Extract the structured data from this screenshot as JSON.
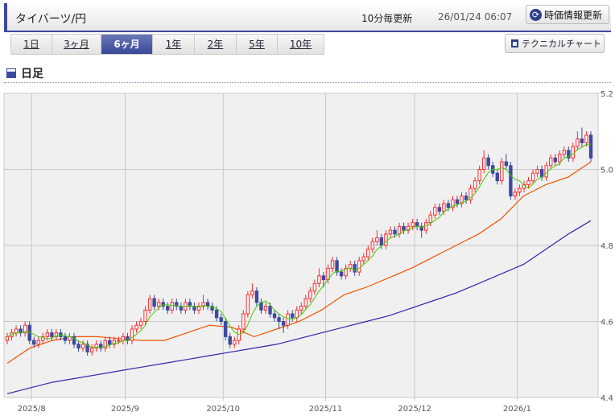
{
  "header": {
    "title": "タイバーツ/円",
    "update_interval": "10分毎更新",
    "timestamp": "26/01/24 06:07",
    "refresh_label": "時価情報更新",
    "refresh_icon": "refresh-icon"
  },
  "tabs": [
    {
      "label": "1日"
    },
    {
      "label": "3ヶ月"
    },
    {
      "label": "6ヶ月",
      "active": true
    },
    {
      "label": "1年"
    },
    {
      "label": "2年"
    },
    {
      "label": "5年"
    },
    {
      "label": "10年"
    }
  ],
  "technical_label": "テクニカルチャート",
  "section_title": "日足",
  "colors": {
    "up": "#ff2a2a",
    "down": "#3c4aa0",
    "ma_short": "#44cc00",
    "ma_mid": "#ee5500",
    "ma_long": "#3a22aa",
    "accent": "#3c4aa0"
  },
  "chart_data": {
    "type": "candlestick",
    "ylim": [
      4.4,
      5.2
    ],
    "yticks": [
      "4.4",
      "4.6",
      "4.8",
      "5.0",
      "5.2"
    ],
    "xticks": [
      "2025/8",
      "2025/9",
      "2025/10",
      "2025/11",
      "2025/12",
      "2026/1"
    ],
    "grid": true,
    "ohlc": [
      [
        4.55,
        4.57,
        4.54,
        4.56
      ],
      [
        4.56,
        4.58,
        4.55,
        4.57
      ],
      [
        4.57,
        4.59,
        4.56,
        4.58
      ],
      [
        4.58,
        4.59,
        4.56,
        4.57
      ],
      [
        4.57,
        4.6,
        4.56,
        4.59
      ],
      [
        4.59,
        4.6,
        4.54,
        4.55
      ],
      [
        4.55,
        4.56,
        4.53,
        4.54
      ],
      [
        4.54,
        4.56,
        4.53,
        4.55
      ],
      [
        4.55,
        4.57,
        4.54,
        4.56
      ],
      [
        4.56,
        4.58,
        4.55,
        4.57
      ],
      [
        4.57,
        4.58,
        4.55,
        4.56
      ],
      [
        4.56,
        4.58,
        4.55,
        4.57
      ],
      [
        4.57,
        4.58,
        4.55,
        4.56
      ],
      [
        4.56,
        4.57,
        4.54,
        4.55
      ],
      [
        4.55,
        4.57,
        4.54,
        4.56
      ],
      [
        4.56,
        4.57,
        4.53,
        4.54
      ],
      [
        4.54,
        4.55,
        4.52,
        4.53
      ],
      [
        4.53,
        4.55,
        4.52,
        4.54
      ],
      [
        4.54,
        4.55,
        4.51,
        4.52
      ],
      [
        4.52,
        4.54,
        4.51,
        4.53
      ],
      [
        4.53,
        4.55,
        4.52,
        4.54
      ],
      [
        4.54,
        4.55,
        4.52,
        4.53
      ],
      [
        4.53,
        4.56,
        4.52,
        4.55
      ],
      [
        4.55,
        4.56,
        4.53,
        4.54
      ],
      [
        4.54,
        4.56,
        4.53,
        4.55
      ],
      [
        4.55,
        4.56,
        4.54,
        4.55
      ],
      [
        4.55,
        4.57,
        4.54,
        4.56
      ],
      [
        4.56,
        4.57,
        4.54,
        4.55
      ],
      [
        4.55,
        4.59,
        4.54,
        4.58
      ],
      [
        4.58,
        4.6,
        4.57,
        4.59
      ],
      [
        4.59,
        4.61,
        4.58,
        4.6
      ],
      [
        4.6,
        4.64,
        4.59,
        4.63
      ],
      [
        4.63,
        4.67,
        4.62,
        4.66
      ],
      [
        4.66,
        4.67,
        4.63,
        4.64
      ],
      [
        4.64,
        4.66,
        4.63,
        4.65
      ],
      [
        4.65,
        4.66,
        4.63,
        4.64
      ],
      [
        4.64,
        4.65,
        4.62,
        4.63
      ],
      [
        4.63,
        4.66,
        4.62,
        4.65
      ],
      [
        4.65,
        4.66,
        4.63,
        4.64
      ],
      [
        4.64,
        4.65,
        4.62,
        4.63
      ],
      [
        4.63,
        4.66,
        4.62,
        4.65
      ],
      [
        4.65,
        4.66,
        4.63,
        4.64
      ],
      [
        4.64,
        4.65,
        4.62,
        4.63
      ],
      [
        4.63,
        4.65,
        4.62,
        4.64
      ],
      [
        4.64,
        4.67,
        4.63,
        4.65
      ],
      [
        4.65,
        4.66,
        4.63,
        4.64
      ],
      [
        4.64,
        4.65,
        4.62,
        4.63
      ],
      [
        4.63,
        4.64,
        4.6,
        4.61
      ],
      [
        4.61,
        4.62,
        4.59,
        4.6
      ],
      [
        4.6,
        4.61,
        4.55,
        4.56
      ],
      [
        4.56,
        4.57,
        4.53,
        4.54
      ],
      [
        4.54,
        4.56,
        4.53,
        4.55
      ],
      [
        4.55,
        4.59,
        4.54,
        4.58
      ],
      [
        4.58,
        4.63,
        4.57,
        4.62
      ],
      [
        4.62,
        4.68,
        4.61,
        4.67
      ],
      [
        4.67,
        4.7,
        4.66,
        4.68
      ],
      [
        4.68,
        4.69,
        4.64,
        4.65
      ],
      [
        4.65,
        4.66,
        4.62,
        4.63
      ],
      [
        4.63,
        4.65,
        4.62,
        4.64
      ],
      [
        4.64,
        4.65,
        4.61,
        4.62
      ],
      [
        4.62,
        4.63,
        4.6,
        4.61
      ],
      [
        4.61,
        4.62,
        4.58,
        4.6
      ],
      [
        4.6,
        4.61,
        4.57,
        4.59
      ],
      [
        4.59,
        4.63,
        4.58,
        4.62
      ],
      [
        4.62,
        4.63,
        4.6,
        4.61
      ],
      [
        4.61,
        4.64,
        4.6,
        4.63
      ],
      [
        4.63,
        4.65,
        4.62,
        4.64
      ],
      [
        4.64,
        4.67,
        4.63,
        4.66
      ],
      [
        4.66,
        4.69,
        4.65,
        4.68
      ],
      [
        4.68,
        4.71,
        4.67,
        4.7
      ],
      [
        4.7,
        4.74,
        4.69,
        4.72
      ],
      [
        4.72,
        4.73,
        4.69,
        4.71
      ],
      [
        4.71,
        4.75,
        4.7,
        4.74
      ],
      [
        4.74,
        4.77,
        4.73,
        4.76
      ],
      [
        4.76,
        4.77,
        4.72,
        4.73
      ],
      [
        4.73,
        4.74,
        4.71,
        4.72
      ],
      [
        4.72,
        4.75,
        4.71,
        4.74
      ],
      [
        4.74,
        4.76,
        4.73,
        4.75
      ],
      [
        4.75,
        4.76,
        4.72,
        4.73
      ],
      [
        4.73,
        4.77,
        4.72,
        4.76
      ],
      [
        4.76,
        4.78,
        4.75,
        4.77
      ],
      [
        4.77,
        4.8,
        4.76,
        4.79
      ],
      [
        4.79,
        4.82,
        4.78,
        4.81
      ],
      [
        4.81,
        4.84,
        4.8,
        4.82
      ],
      [
        4.82,
        4.83,
        4.79,
        4.8
      ],
      [
        4.8,
        4.84,
        4.79,
        4.83
      ],
      [
        4.83,
        4.85,
        4.82,
        4.84
      ],
      [
        4.84,
        4.85,
        4.82,
        4.83
      ],
      [
        4.83,
        4.86,
        4.82,
        4.85
      ],
      [
        4.85,
        4.86,
        4.83,
        4.84
      ],
      [
        4.84,
        4.86,
        4.83,
        4.85
      ],
      [
        4.85,
        4.87,
        4.84,
        4.86
      ],
      [
        4.86,
        4.87,
        4.84,
        4.85
      ],
      [
        4.85,
        4.86,
        4.82,
        4.84
      ],
      [
        4.84,
        4.87,
        4.83,
        4.86
      ],
      [
        4.86,
        4.89,
        4.85,
        4.88
      ],
      [
        4.88,
        4.91,
        4.87,
        4.9
      ],
      [
        4.9,
        4.91,
        4.88,
        4.89
      ],
      [
        4.89,
        4.92,
        4.88,
        4.91
      ],
      [
        4.91,
        4.92,
        4.89,
        4.9
      ],
      [
        4.9,
        4.93,
        4.89,
        4.92
      ],
      [
        4.92,
        4.93,
        4.9,
        4.91
      ],
      [
        4.91,
        4.94,
        4.9,
        4.93
      ],
      [
        4.93,
        4.94,
        4.91,
        4.92
      ],
      [
        4.92,
        4.96,
        4.91,
        4.95
      ],
      [
        4.95,
        4.98,
        4.94,
        4.97
      ],
      [
        4.97,
        5.01,
        4.96,
        5.0
      ],
      [
        5.0,
        5.05,
        4.99,
        5.03
      ],
      [
        5.03,
        5.04,
        5.0,
        5.01
      ],
      [
        5.01,
        5.02,
        4.98,
        4.99
      ],
      [
        4.99,
        5.0,
        4.96,
        4.97
      ],
      [
        4.97,
        5.03,
        4.96,
        5.02
      ],
      [
        5.02,
        5.04,
        5.0,
        5.01
      ],
      [
        5.01,
        5.02,
        4.92,
        4.93
      ],
      [
        4.93,
        4.95,
        4.92,
        4.94
      ],
      [
        4.94,
        4.96,
        4.93,
        4.95
      ],
      [
        4.95,
        4.97,
        4.94,
        4.96
      ],
      [
        4.96,
        4.98,
        4.95,
        4.97
      ],
      [
        4.97,
        5.0,
        4.96,
        4.99
      ],
      [
        4.99,
        5.01,
        4.98,
        5.0
      ],
      [
        5.0,
        5.01,
        4.97,
        4.98
      ],
      [
        4.98,
        5.02,
        4.97,
        5.01
      ],
      [
        5.01,
        5.04,
        5.0,
        5.03
      ],
      [
        5.03,
        5.04,
        5.01,
        5.02
      ],
      [
        5.02,
        5.05,
        5.01,
        5.04
      ],
      [
        5.04,
        5.06,
        5.03,
        5.05
      ],
      [
        5.05,
        5.06,
        5.02,
        5.03
      ],
      [
        5.03,
        5.07,
        5.02,
        5.06
      ],
      [
        5.06,
        5.1,
        5.05,
        5.08
      ],
      [
        5.08,
        5.11,
        5.06,
        5.07
      ],
      [
        5.07,
        5.1,
        5.06,
        5.09
      ],
      [
        5.09,
        5.1,
        5.02,
        5.03
      ]
    ],
    "ma_mid": [
      4.49,
      4.53,
      4.55,
      4.56,
      4.56,
      4.555,
      4.55,
      4.55,
      4.57,
      4.59,
      4.585,
      4.56,
      4.58,
      4.6,
      4.63,
      4.67,
      4.69,
      4.715,
      4.74,
      4.77,
      4.8,
      4.83,
      4.87,
      4.93,
      4.96,
      4.98,
      5.02
    ],
    "ma_long": [
      4.41,
      4.425,
      4.44,
      4.45,
      4.46,
      4.47,
      4.48,
      4.49,
      4.5,
      4.51,
      4.52,
      4.53,
      4.54,
      4.555,
      4.57,
      4.585,
      4.6,
      4.615,
      4.635,
      4.655,
      4.675,
      4.7,
      4.725,
      4.75,
      4.79,
      4.83,
      4.865
    ]
  }
}
